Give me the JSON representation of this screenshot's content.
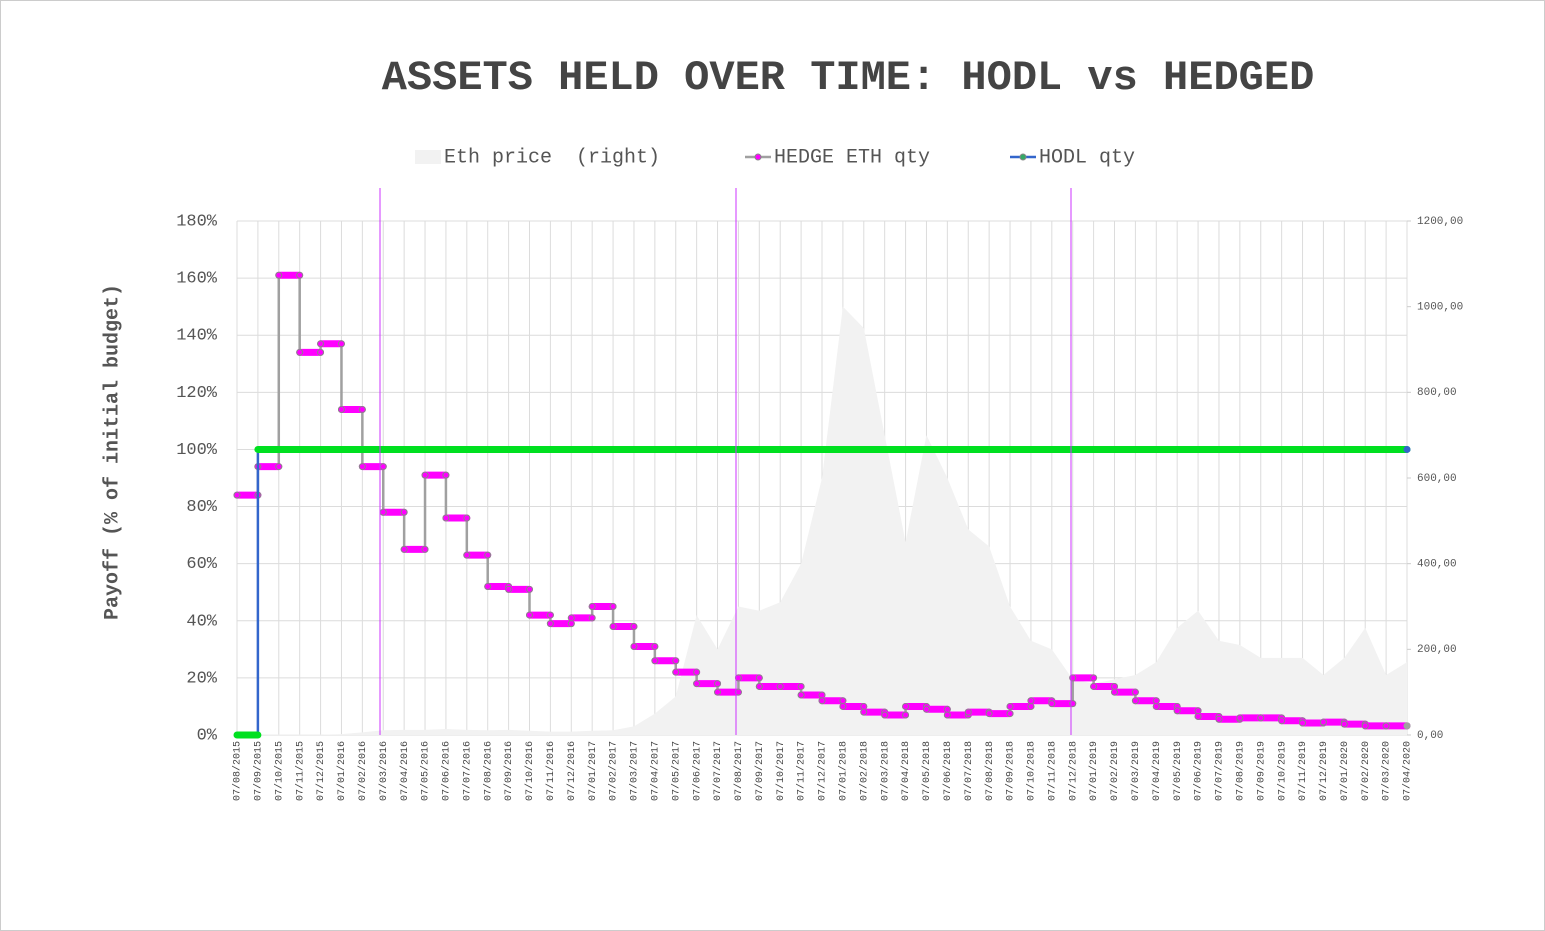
{
  "chart_data": {
    "type": "line",
    "title": "ASSETS HELD OVER TIME: HODL vs HEDGED",
    "y_label": "Payoff (% of initial budget)",
    "grid": true,
    "categories": [
      "07/08/2015",
      "07/09/2015",
      "07/10/2015",
      "07/11/2015",
      "07/12/2015",
      "07/01/2016",
      "07/02/2016",
      "07/03/2016",
      "07/04/2016",
      "07/05/2016",
      "07/06/2016",
      "07/07/2016",
      "07/08/2016",
      "07/09/2016",
      "07/10/2016",
      "07/11/2016",
      "07/12/2016",
      "07/01/2017",
      "07/02/2017",
      "07/03/2017",
      "07/04/2017",
      "07/05/2017",
      "07/06/2017",
      "07/07/2017",
      "07/08/2017",
      "07/09/2017",
      "07/10/2017",
      "07/11/2017",
      "07/12/2017",
      "07/01/2018",
      "07/02/2018",
      "07/03/2018",
      "07/04/2018",
      "07/05/2018",
      "07/06/2018",
      "07/07/2018",
      "07/08/2018",
      "07/09/2018",
      "07/10/2018",
      "07/11/2018",
      "07/12/2018",
      "07/01/2019",
      "07/02/2019",
      "07/03/2019",
      "07/04/2019",
      "07/05/2019",
      "07/06/2019",
      "07/07/2019",
      "07/08/2019",
      "07/09/2019",
      "07/10/2019",
      "07/11/2019",
      "07/12/2019",
      "07/01/2020",
      "07/02/2020",
      "07/03/2020",
      "07/04/2020"
    ],
    "ylim": [
      0,
      180
    ],
    "yticks": [
      {
        "value": 0,
        "label": "0%"
      },
      {
        "value": 20,
        "label": "20%"
      },
      {
        "value": 40,
        "label": "40%"
      },
      {
        "value": 60,
        "label": "60%"
      },
      {
        "value": 80,
        "label": "80%"
      },
      {
        "value": 100,
        "label": "100%"
      },
      {
        "value": 120,
        "label": "120%"
      },
      {
        "value": 140,
        "label": "140%"
      },
      {
        "value": 160,
        "label": "160%"
      },
      {
        "value": 180,
        "label": "180%"
      }
    ],
    "y2lim": [
      0,
      1200
    ],
    "y2ticks": [
      {
        "value": 0,
        "label": "0,00"
      },
      {
        "value": 200,
        "label": "200,00"
      },
      {
        "value": 400,
        "label": "400,00"
      },
      {
        "value": 600,
        "label": "600,00"
      },
      {
        "value": 800,
        "label": "800,00"
      },
      {
        "value": 1000,
        "label": "1000,00"
      },
      {
        "value": 1200,
        "label": "1200,00"
      }
    ],
    "series": [
      {
        "name": "Eth price  (right)",
        "type": "area",
        "axis": "y2",
        "color": "#f2f2f2",
        "values": [
          1,
          1,
          1,
          1,
          1,
          2,
          6,
          11,
          12,
          12,
          14,
          12,
          11,
          12,
          10,
          8,
          8,
          10,
          11,
          20,
          50,
          90,
          280,
          200,
          300,
          290,
          310,
          400,
          600,
          1000,
          950,
          700,
          450,
          700,
          600,
          480,
          440,
          300,
          220,
          200,
          130,
          120,
          130,
          140,
          170,
          250,
          290,
          220,
          210,
          180,
          180,
          180,
          140,
          180,
          250,
          140,
          170
        ]
      },
      {
        "name": "HEDGE ETH qty",
        "type": "step",
        "color": "#ff00ff",
        "line_color": "#a0a0a0",
        "markers": true,
        "values": [
          84,
          94,
          161,
          134,
          137,
          114,
          94,
          78,
          65,
          91,
          76,
          63,
          52,
          51,
          42,
          39,
          41,
          45,
          38,
          31,
          26,
          22,
          18,
          15,
          20,
          17,
          17,
          14,
          12,
          10,
          8,
          7,
          10,
          9,
          7,
          8,
          7.5,
          10,
          12,
          11,
          20,
          17,
          15,
          12,
          10,
          8.5,
          6.5,
          5.5,
          6,
          6,
          5,
          4.2,
          4.5,
          3.8,
          3.2,
          3.2,
          3.2
        ]
      },
      {
        "name": "HODL qty",
        "type": "step",
        "color": "#00e020",
        "line_color": "#3366cc",
        "markers": false,
        "values": [
          0,
          100,
          100,
          100,
          100,
          100,
          100,
          100,
          100,
          100,
          100,
          100,
          100,
          100,
          100,
          100,
          100,
          100,
          100,
          100,
          100,
          100,
          100,
          100,
          100,
          100,
          100,
          100,
          100,
          100,
          100,
          100,
          100,
          100,
          100,
          100,
          100,
          100,
          100,
          100,
          100,
          100,
          100,
          100,
          100,
          100,
          100,
          100,
          100,
          100,
          100,
          100,
          100,
          100,
          100,
          100,
          100
        ]
      }
    ]
  }
}
